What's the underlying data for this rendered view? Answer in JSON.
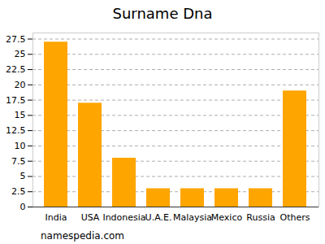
{
  "chart_data": {
    "type": "bar",
    "title": "Surname Dna",
    "categories": [
      "India",
      "USA",
      "Indonesia",
      "U.A.E.",
      "Malaysia",
      "Mexico",
      "Russia",
      "Others"
    ],
    "values": [
      27,
      17,
      8,
      3,
      3,
      3,
      3,
      19
    ],
    "color": "#ffa500",
    "ylim": [
      0,
      28.5
    ],
    "yticks": [
      0,
      2.5,
      5,
      7.5,
      10,
      12.5,
      15,
      17.5,
      20,
      22.5,
      25,
      27.5
    ],
    "grid": true,
    "caption": "namespedia.com"
  }
}
